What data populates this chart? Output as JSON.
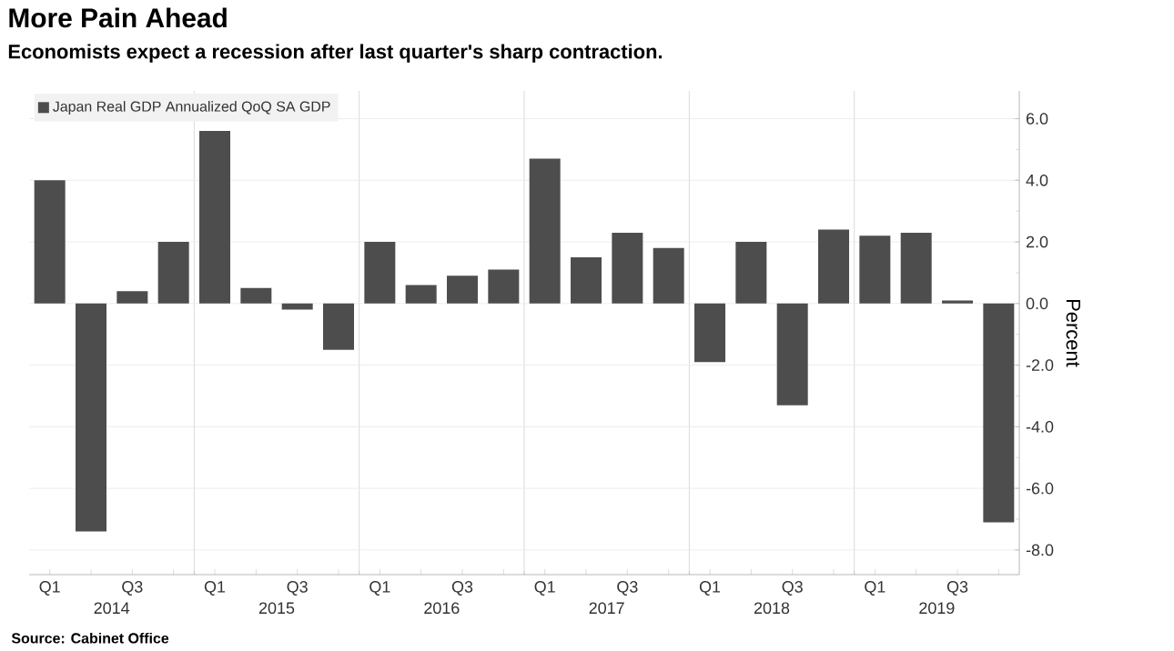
{
  "chart_data": {
    "type": "bar",
    "title": "More Pain Ahead",
    "subtitle": "Economists expect a recession after last quarter's sharp contraction.",
    "ylabel": "Percent",
    "categories": [
      "Q1",
      null,
      "Q3",
      null,
      "Q1",
      null,
      "Q3",
      null,
      "Q1",
      null,
      "Q3",
      null,
      "Q1",
      null,
      "Q3",
      null,
      "Q1",
      null,
      "Q3",
      null,
      "Q1",
      null,
      "Q3",
      null
    ],
    "series": [
      {
        "name": "Japan Real GDP Annualized QoQ SA GDP",
        "color": "#4d4d4d",
        "values": [
          4.0,
          -7.4,
          0.4,
          2.0,
          5.6,
          0.5,
          -0.2,
          -1.5,
          2.0,
          0.6,
          0.9,
          1.1,
          4.7,
          1.5,
          2.3,
          1.8,
          -1.9,
          2.0,
          -3.3,
          2.4,
          2.2,
          2.3,
          0.1,
          -7.1
        ]
      }
    ],
    "ylim": [
      -8.8,
      6.9
    ],
    "yticks": [
      {
        "value": -8,
        "label": "-8.0"
      },
      {
        "value": -6,
        "label": "-6.0"
      },
      {
        "value": -4,
        "label": "-4.0"
      },
      {
        "value": -2,
        "label": "-2.0"
      },
      {
        "value": 0,
        "label": "0.0"
      },
      {
        "value": 2,
        "label": "2.0"
      },
      {
        "value": 4,
        "label": "4.0"
      },
      {
        "value": 6,
        "label": "6.0"
      }
    ],
    "grid": true,
    "legend": "top left",
    "annotations": [
      "2014",
      "2015",
      "2016",
      "2017",
      "2018",
      "2019",
      "Source: Cabinet Office"
    ]
  }
}
